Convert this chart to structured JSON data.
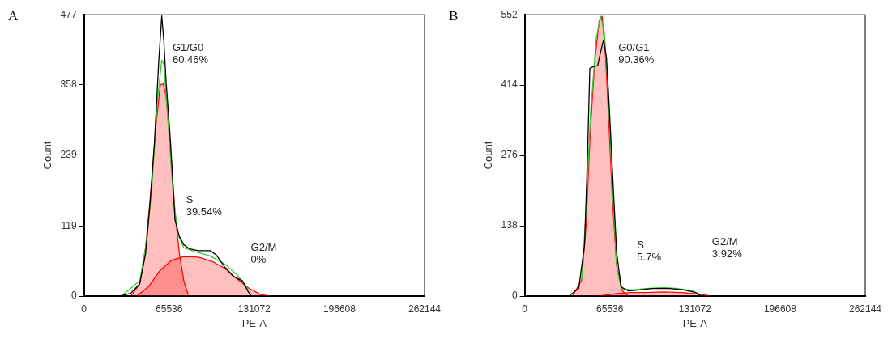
{
  "chart_data": [
    {
      "type": "line",
      "title": "A",
      "xlabel": "PE-A",
      "ylabel": "Count",
      "xlim": [
        0,
        262144
      ],
      "xticks": [
        0,
        65536,
        131072,
        196608,
        262144
      ],
      "ylim": [
        0,
        477
      ],
      "yticks": [
        0,
        119,
        239,
        358,
        477
      ],
      "grid": false,
      "legend": false,
      "marker": "none",
      "annotations": [
        "G1/G0\n60.46%",
        "S\n39.54%",
        "G2/M\n0%"
      ],
      "series": [
        {
          "type": "area",
          "color": "#ff0000",
          "x": [
            36157,
            42937,
            47457,
            51977,
            55367,
            58757,
            61017,
            63277,
            66667,
            70057,
            73447,
            76837,
            80227
          ],
          "values": [
            0,
            21,
            82,
            189,
            288,
            358,
            360,
            339,
            246,
            143,
            72,
            26,
            2
          ]
        },
        {
          "type": "area",
          "color": "#ff0000",
          "x": [
            40677,
            49717,
            58757,
            67797,
            76837,
            88137,
            99437,
            108477,
            117517,
            126557,
            135597,
            142377
          ],
          "values": [
            0,
            16,
            44,
            61,
            67,
            66,
            58,
            47,
            30,
            14,
            3,
            0
          ]
        },
        {
          "type": "line",
          "color": "#000000",
          "x": [
            29380,
            36157,
            42937,
            47457,
            50847,
            54237,
            57627,
            59887,
            61470,
            63280,
            66670,
            70060,
            73450,
            76840,
            81360,
            88140,
            97180,
            101700,
            108480,
            115260,
            122040,
            126560,
            128820
          ],
          "values": [
            1,
            5,
            21,
            72,
            157,
            260,
            400,
            475,
            433,
            362,
            260,
            129,
            101,
            87,
            80,
            77,
            77,
            70,
            49,
            33,
            26,
            7,
            0
          ]
        },
        {
          "type": "line",
          "color": "#33cc33",
          "x": [
            29380,
            42937,
            47457,
            51977,
            56497,
            59887,
            61470,
            64407,
            68927,
            72317,
            76837,
            85877,
            97177,
            108477,
            117517,
            126557
          ],
          "values": [
            1,
            26,
            82,
            175,
            330,
            400,
            393,
            306,
            166,
            105,
            82,
            75,
            68,
            54,
            37,
            12
          ]
        }
      ]
    },
    {
      "type": "line",
      "title": "B",
      "xlabel": "PE-A",
      "ylabel": "Count",
      "xlim": [
        0,
        262144
      ],
      "xticks": [
        0,
        65536,
        131072,
        196608,
        262144
      ],
      "ylim": [
        0,
        552
      ],
      "yticks": [
        0,
        138,
        276,
        414,
        552
      ],
      "grid": false,
      "legend": false,
      "marker": "none",
      "annotations": [
        "G0/G1\n90.36%",
        "S\n5.7%",
        "G2/M\n3.92%"
      ],
      "series": [
        {
          "type": "area",
          "color": "#ff0000",
          "x": [
            37100,
            43840,
            47210,
            50580,
            53950,
            57320,
            59570,
            61820,
            64520,
            67450,
            70820,
            75320,
            79810
          ],
          "values": [
            2,
            31,
            139,
            328,
            463,
            539,
            549,
            490,
            355,
            193,
            58,
            10,
            0
          ]
        },
        {
          "type": "area",
          "color": "#ff0000",
          "x": [
            57320,
            70820,
            82060,
            93300,
            106790,
            120280,
            133770,
            142760
          ],
          "values": [
            0,
            5,
            7,
            7,
            8,
            7,
            4,
            0
          ]
        },
        {
          "type": "line",
          "color": "#000000",
          "x": [
            35000,
            41590,
            46090,
            48340,
            50140,
            52840,
            56200,
            58450,
            60700,
            62950,
            65200,
            68580,
            70820,
            74190,
            79810,
            88800,
            97800,
            111290,
            122530,
            131520,
            136020
          ],
          "values": [
            2,
            15,
            101,
            274,
            447,
            450,
            452,
            479,
            503,
            468,
            366,
            193,
            85,
            18,
            10,
            12,
            15,
            15,
            12,
            7,
            0
          ]
        },
        {
          "type": "line",
          "color": "#33cc33",
          "x": [
            43840,
            47210,
            50580,
            55080,
            58450,
            61370,
            64070,
            67450,
            70820,
            74190,
            82060,
            93300,
            106790,
            118030,
            129270,
            136020
          ],
          "values": [
            31,
            166,
            355,
            506,
            549,
            517,
            409,
            220,
            58,
            15,
            12,
            15,
            17,
            15,
            10,
            2
          ]
        }
      ]
    }
  ]
}
